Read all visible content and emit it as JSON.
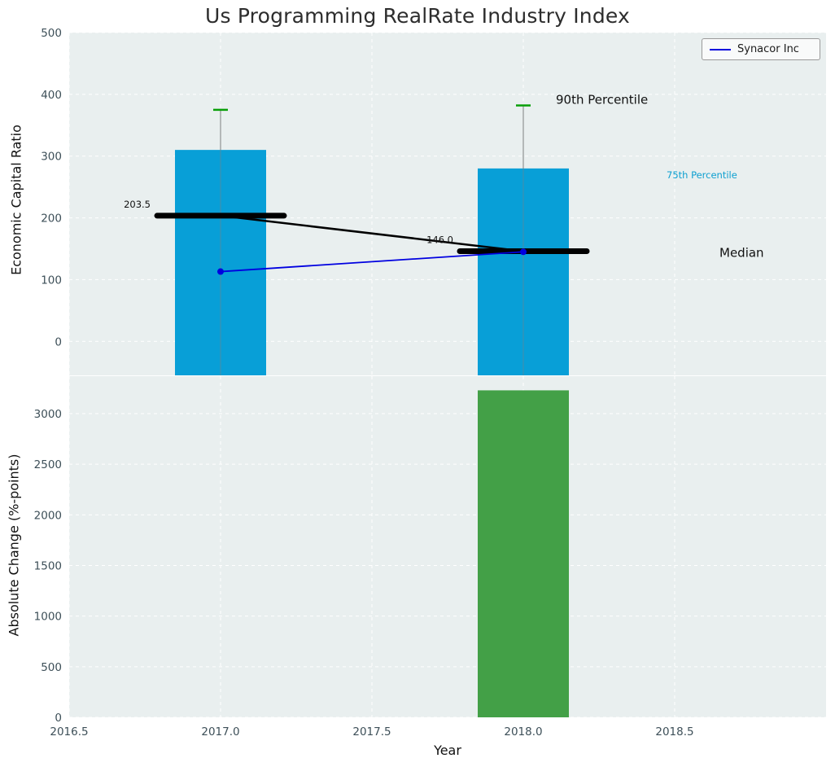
{
  "title": "Us Programming RealRate Industry Index",
  "chart_data": {
    "type": "bar",
    "title": "Us Programming RealRate Industry Index",
    "xlabel": "Year",
    "x_range": [
      2016.5,
      2019.0
    ],
    "xticks": [
      {
        "value": 2016.5,
        "label": "2016.5"
      },
      {
        "value": 2017.0,
        "label": "2017.0"
      },
      {
        "value": 2017.5,
        "label": "2017.5"
      },
      {
        "value": 2018.0,
        "label": "2018.0"
      },
      {
        "value": 2018.5,
        "label": "2018.5"
      }
    ],
    "legend": {
      "label": "Synacor Inc",
      "color": "#0000dd"
    },
    "colors": {
      "plot_bg": "#e9efef",
      "grid": "#ffffff",
      "bar_top": "#089fd7",
      "bar_bottom": "#43a047",
      "whisker": "#808080",
      "whisker_cap": "#089f08",
      "median": "#000000",
      "company": "#0000e0",
      "tick_text": "#3d4f58",
      "p75_label": "#0d9fd0",
      "annotation": "#111111"
    },
    "top": {
      "ylabel": "Economic Capital Ratio",
      "ylim": [
        -55,
        500
      ],
      "yticks": [
        0,
        100,
        200,
        300,
        400,
        500
      ],
      "x": [
        2017,
        2018
      ],
      "bar_values_75th_percentile": [
        310,
        280
      ],
      "whisker_90th_percentile": [
        375,
        382
      ],
      "median_values": [
        203.5,
        146.0
      ],
      "median_labels": [
        "203.5",
        "146.0"
      ],
      "company_series": {
        "name": "Synacor Inc",
        "values": [
          113,
          145
        ]
      },
      "labels": {
        "p90": "90th Percentile",
        "p75": "75th Percentile",
        "median": "Median"
      }
    },
    "bottom": {
      "ylabel": "Absolute Change (%-points)",
      "ylim": [
        0,
        3370
      ],
      "yticks": [
        0,
        500,
        1000,
        1500,
        2000,
        2500,
        3000
      ],
      "x": [
        2018
      ],
      "values": [
        3230
      ]
    }
  }
}
